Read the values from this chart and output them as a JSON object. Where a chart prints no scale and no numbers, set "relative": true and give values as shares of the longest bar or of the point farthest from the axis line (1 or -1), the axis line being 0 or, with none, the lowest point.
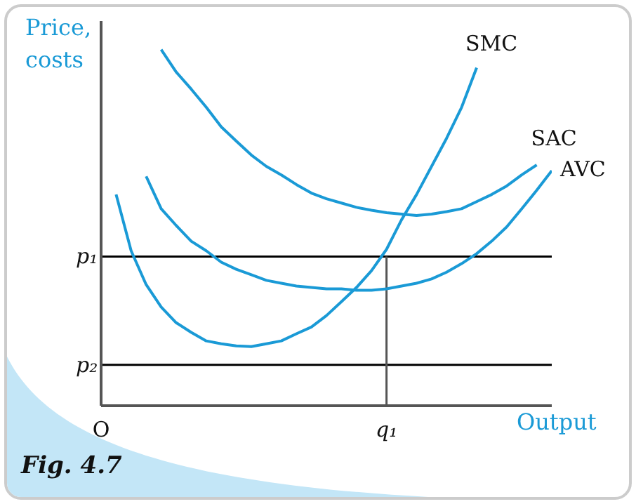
{
  "chart_data": {
    "type": "line",
    "relative": true,
    "xlabel": "Output",
    "ylabel": "Price, costs",
    "marker": "none",
    "line_style": "solid",
    "categories": [
      "O",
      null,
      null,
      null,
      null,
      null,
      null,
      null,
      null,
      null,
      null,
      null,
      null,
      null,
      null,
      null,
      null,
      null,
      null,
      "q₁",
      null,
      null,
      null,
      null,
      null,
      null,
      null,
      null,
      null,
      null,
      null
    ],
    "series": [
      {
        "name": "SMC",
        "color": "#1a9ad6",
        "values": [
          null,
          0.593,
          0.435,
          0.34,
          0.277,
          0.233,
          0.206,
          0.182,
          0.174,
          0.168,
          0.166,
          0.174,
          0.182,
          0.202,
          0.221,
          0.253,
          0.292,
          0.332,
          0.379,
          0.439,
          0.522,
          0.593,
          0.672,
          0.751,
          0.838,
          0.949,
          null,
          null,
          null,
          null,
          null
        ]
      },
      {
        "name": "SAC",
        "color": "#1a9ad6",
        "values": [
          null,
          null,
          null,
          null,
          1,
          0.937,
          0.889,
          0.838,
          0.783,
          0.743,
          0.704,
          0.672,
          0.648,
          0.621,
          0.597,
          0.581,
          0.569,
          0.557,
          0.549,
          0.542,
          0.538,
          0.534,
          0.538,
          0.545,
          0.553,
          0.573,
          0.593,
          0.617,
          0.648,
          0.676,
          null
        ]
      },
      {
        "name": "AVC",
        "color": "#1a9ad6",
        "values": [
          null,
          null,
          null,
          0.644,
          0.553,
          0.506,
          0.462,
          0.435,
          0.403,
          0.383,
          0.368,
          0.352,
          0.344,
          0.336,
          0.332,
          0.328,
          0.328,
          0.324,
          0.324,
          0.328,
          0.336,
          0.344,
          0.356,
          0.375,
          0.399,
          0.427,
          0.462,
          0.502,
          0.553,
          0.605,
          0.66
        ]
      }
    ],
    "ref_lines": [
      {
        "axis": "y",
        "value": 0.419,
        "label": "p₁",
        "color": "#000000"
      },
      {
        "axis": "y",
        "value": 0.115,
        "label": "p₂",
        "color": "#000000"
      },
      {
        "axis": "x",
        "value": "q₁",
        "color": "#555555"
      }
    ],
    "annotations": [
      "Fig. 4.7"
    ]
  }
}
